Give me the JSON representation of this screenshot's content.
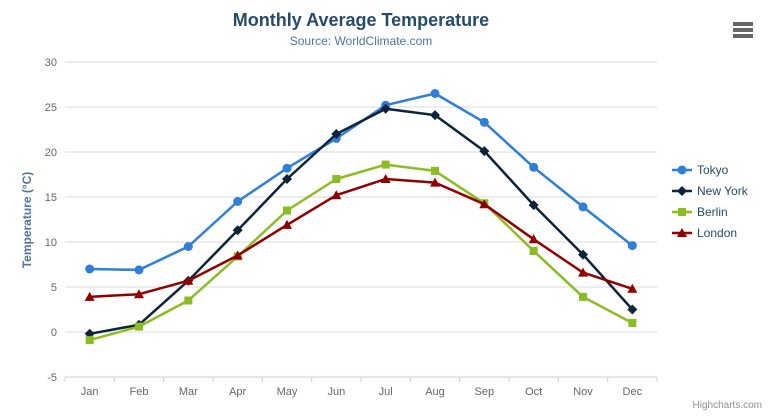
{
  "chart": {
    "title": "Monthly Average Temperature",
    "subtitle": "Source: WorldClimate.com",
    "credits_label": "Highcharts.com",
    "context_menu_icon": "hamburger-icon",
    "background_color": "#ffffff",
    "grid_color": "#d8d8d8",
    "axis_line_color": "#c0d0e0",
    "axis_label_color": "#666666",
    "title_color": "#274b6d",
    "subtitle_color": "#4d759e"
  },
  "chart_data": {
    "type": "line",
    "title": "Monthly Average Temperature",
    "subtitle": "Source: WorldClimate.com",
    "xlabel": "",
    "ylabel": "Temperature (°C)",
    "ylim": [
      -5,
      30
    ],
    "ytick_step": 5,
    "grid": true,
    "legend_position": "right",
    "categories": [
      "Jan",
      "Feb",
      "Mar",
      "Apr",
      "May",
      "Jun",
      "Jul",
      "Aug",
      "Sep",
      "Oct",
      "Nov",
      "Dec"
    ],
    "series": [
      {
        "name": "Tokyo",
        "color": "#2f7ed8",
        "marker": "circle",
        "values": [
          7.0,
          6.9,
          9.5,
          14.5,
          18.2,
          21.5,
          25.2,
          26.5,
          23.3,
          18.3,
          13.9,
          9.6
        ]
      },
      {
        "name": "New York",
        "color": "#0d233a",
        "marker": "diamond",
        "values": [
          -0.2,
          0.8,
          5.7,
          11.3,
          17.0,
          22.0,
          24.8,
          24.1,
          20.1,
          14.1,
          8.6,
          2.5
        ]
      },
      {
        "name": "Berlin",
        "color": "#8bbc21",
        "marker": "square",
        "values": [
          -0.9,
          0.6,
          3.5,
          8.4,
          13.5,
          17.0,
          18.6,
          17.9,
          14.3,
          9.0,
          3.9,
          1.0
        ]
      },
      {
        "name": "London",
        "color": "#910000",
        "marker": "triangle",
        "values": [
          3.9,
          4.2,
          5.7,
          8.5,
          11.9,
          15.2,
          17.0,
          16.6,
          14.2,
          10.3,
          6.6,
          4.8
        ]
      }
    ]
  }
}
